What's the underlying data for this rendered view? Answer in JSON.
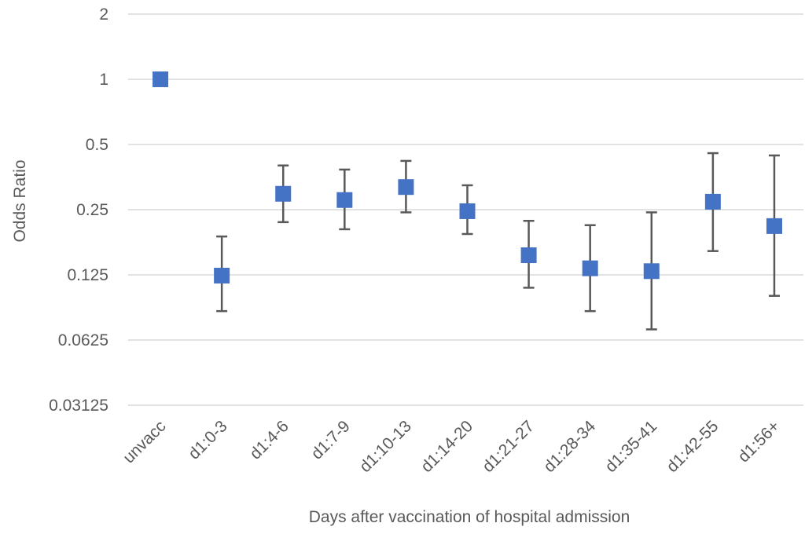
{
  "chart_data": {
    "type": "scatter",
    "x_label": "Days after vaccination of hospital admission",
    "y_label": "Odds Ratio",
    "categories": [
      "unvacc",
      "d1:0-3",
      "d1:4-6",
      "d1:7-9",
      "d1:10-13",
      "d1:14-20",
      "d1:21-27",
      "d1:28-34",
      "d1:35-41",
      "d1:42-55",
      "d1:56+"
    ],
    "series": [
      {
        "color": "#4472c4",
        "values": [
          1.0,
          0.124,
          0.296,
          0.277,
          0.318,
          0.246,
          0.154,
          0.134,
          0.13,
          0.272,
          0.21
        ],
        "lower": [
          null,
          0.085,
          0.219,
          0.203,
          0.243,
          0.193,
          0.109,
          0.085,
          0.07,
          0.161,
          0.1
        ],
        "upper": [
          null,
          0.188,
          0.4,
          0.383,
          0.42,
          0.324,
          0.222,
          0.212,
          0.243,
          0.456,
          0.445
        ]
      }
    ],
    "ylim": [
      0.03125,
      2
    ],
    "yticks": [
      2,
      1,
      0.5,
      0.25,
      0.125,
      0.0625,
      0.03125
    ],
    "log_scale": true,
    "grid": true,
    "error_bar_color": "#595959"
  }
}
